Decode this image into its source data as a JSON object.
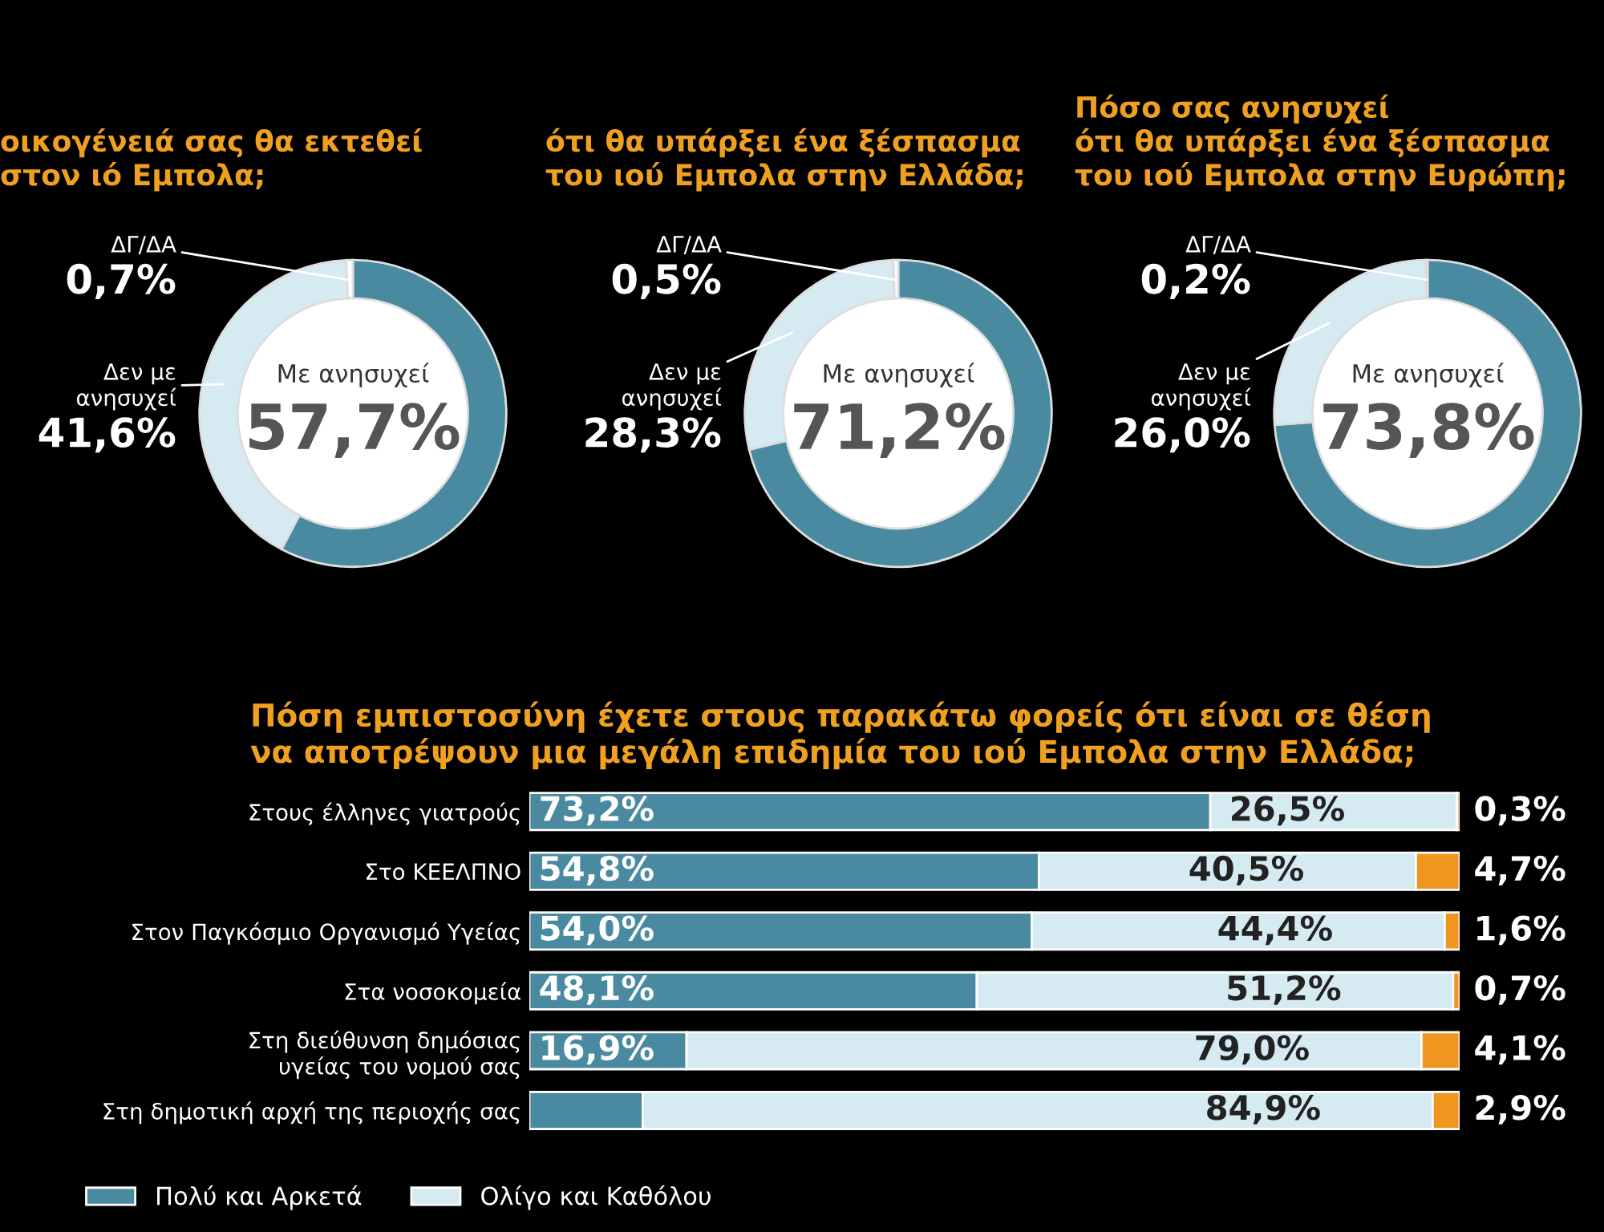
{
  "chart_data": [
    {
      "type": "donut",
      "title": "οικογένειά σας θα εκτεθεί\nστον ιό Εμπολα;",
      "categories": [
        "Με ανησυχεί",
        "Δεν με\nανησυχεί",
        "ΔΓ/ΔΑ"
      ],
      "values": [
        57.7,
        41.6,
        0.7
      ],
      "value_labels": [
        "57,7%",
        "41,6%",
        "0,7%"
      ],
      "colors": [
        "#4a8aa0",
        "#d6eaf2",
        "#ffffff"
      ]
    },
    {
      "type": "donut",
      "title": "ότι θα υπάρξει ένα ξέσπασμα\nτου ιού Εμπολα στην Ελλάδα;",
      "categories": [
        "Με ανησυχεί",
        "Δεν με\nανησυχεί",
        "ΔΓ/ΔΑ"
      ],
      "values": [
        71.2,
        28.3,
        0.5
      ],
      "value_labels": [
        "71,2%",
        "28,3%",
        "0,5%"
      ],
      "colors": [
        "#4a8aa0",
        "#d6eaf2",
        "#ffffff"
      ]
    },
    {
      "type": "donut",
      "title": "Πόσο σας ανησυχεί\nότι θα υπάρξει ένα ξέσπασμα\nτου ιού Εμπολα στην Ευρώπη;",
      "categories": [
        "Με ανησυχεί",
        "Δεν με\nανησυχεί",
        "ΔΓ/ΔΑ"
      ],
      "values": [
        73.8,
        26.0,
        0.2
      ],
      "value_labels": [
        "73,8%",
        "26,0%",
        "0,2%"
      ],
      "colors": [
        "#4a8aa0",
        "#d6eaf2",
        "#ffffff"
      ]
    },
    {
      "type": "bar",
      "orientation": "horizontal",
      "stacked": true,
      "tick_labels": "y",
      "legend": "bottom left",
      "title": "Πόση εμπιστοσύνη έχετε στους παρακάτω φορείς ότι είναι σε θέση\nνα αποτρέψουν μια μεγάλη επιδημία του ιού Εμπολα στην Ελλάδα;",
      "categories": [
        "Στους έλληνες γιατρούς",
        "Στο ΚΕΕΛΠΝΟ",
        "Στον Παγκόσμιο Οργανισμό Υγείας",
        "Στα νοσοκομεία",
        "Στη διεύθυνση δημόσιας\nυγείας του νομού σας",
        "Στη δημοτική αρχή της περιοχής σας"
      ],
      "series": [
        {
          "name": "Πολύ και Αρκετά",
          "color": "#4a8aa0",
          "values": [
            73.2,
            54.8,
            54.0,
            48.1,
            16.9,
            12.2
          ],
          "value_labels": [
            "73,2%",
            "54,8%",
            "54,0%",
            "48,1%",
            "16,9%",
            null
          ]
        },
        {
          "name": "Ολίγο και Καθόλου",
          "color": "#d6eaf2",
          "values": [
            26.5,
            40.5,
            44.4,
            51.2,
            79.0,
            84.9
          ],
          "value_labels": [
            "26,5%",
            "40,5%",
            "44,4%",
            "51,2%",
            "79,0%",
            "84,9%"
          ]
        },
        {
          "color": "#f0961e",
          "values": [
            0.3,
            4.7,
            1.6,
            0.7,
            4.1,
            2.9
          ],
          "value_labels": [
            "0,3%",
            "4,7%",
            "1,6%",
            "0,7%",
            "4,1%",
            "2,9%"
          ]
        }
      ]
    }
  ]
}
